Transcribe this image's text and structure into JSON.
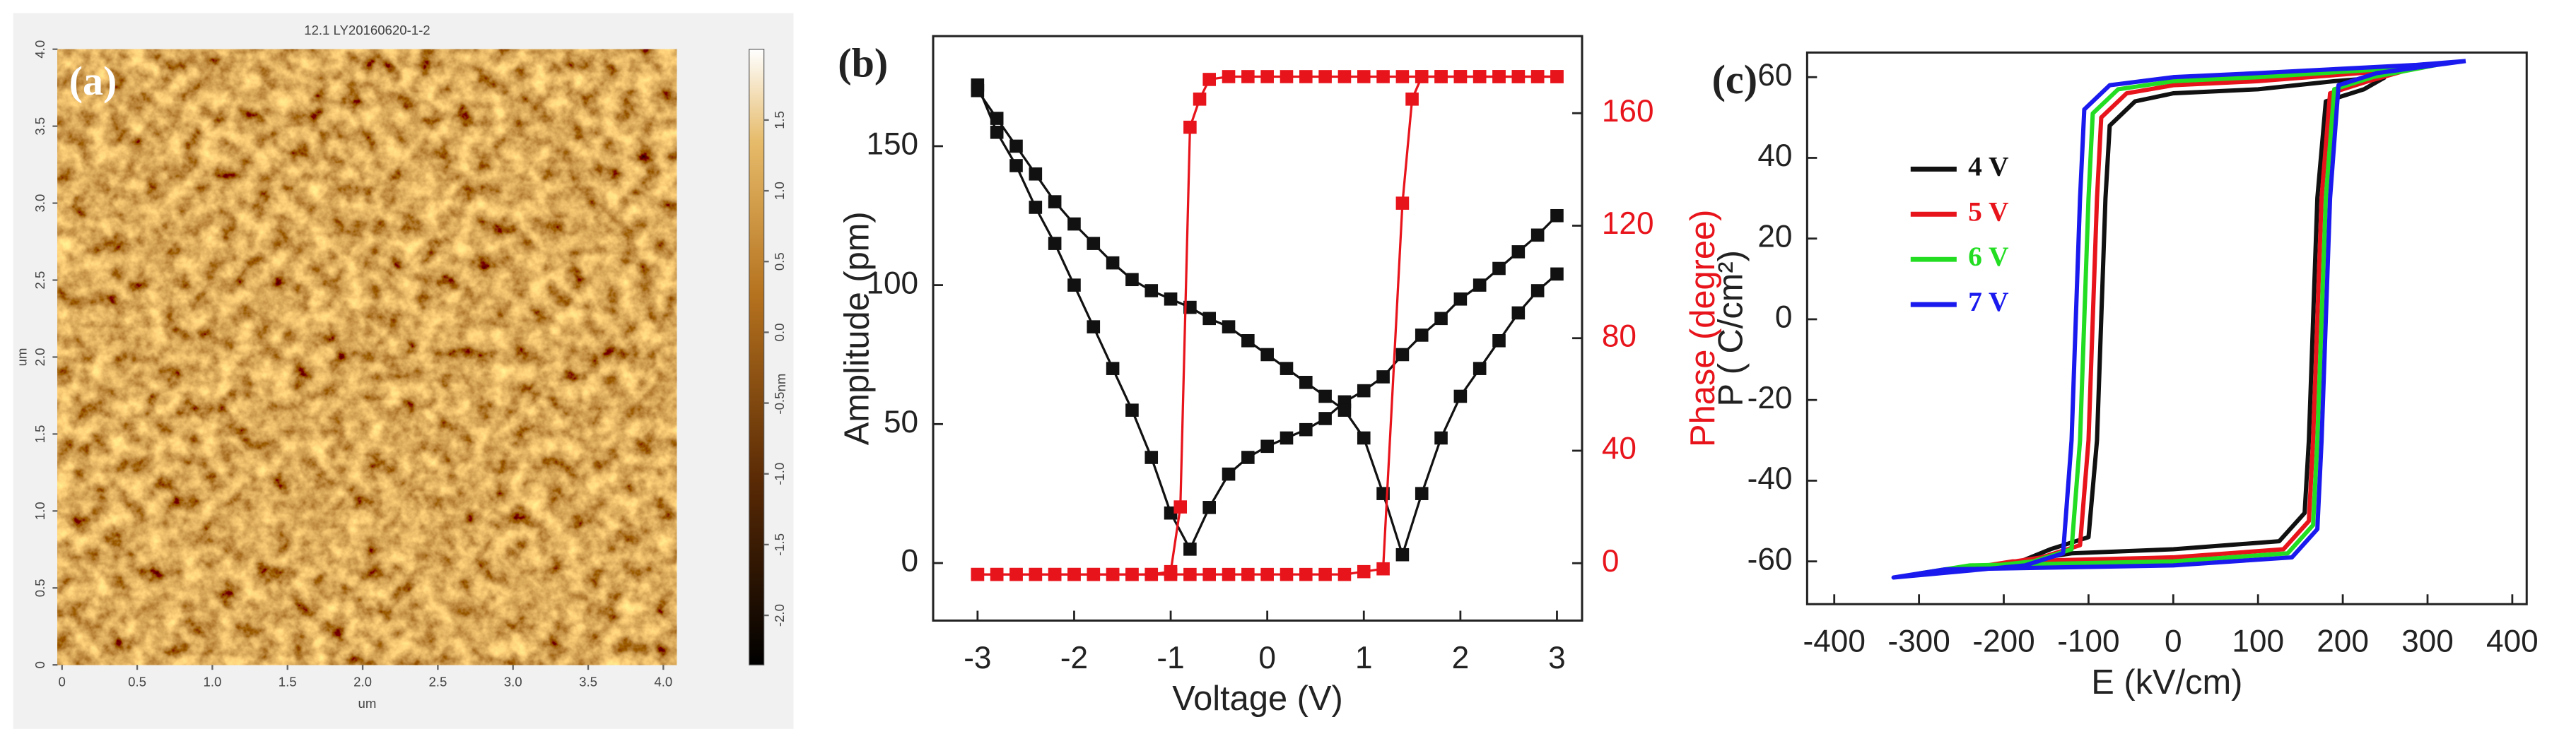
{
  "chart_data": [
    {
      "type": "image",
      "panel_label": "(a)",
      "title": "12.1 LY20160620-1-2",
      "xlabel": "um",
      "ylabel": "um",
      "xlim": [
        -0.03,
        4.09
      ],
      "ylim": [
        0,
        4.0
      ],
      "xticks": [
        0,
        0.5,
        {
          "value": 1,
          "label": "1.0"
        },
        1.5,
        {
          "value": 2,
          "label": "2.0"
        },
        2.5,
        {
          "value": 3,
          "label": "3.0"
        },
        3.5,
        {
          "value": 4,
          "label": "4.0"
        }
      ],
      "yticks": [
        0,
        0.5,
        {
          "value": 1,
          "label": "1.0"
        },
        1.5,
        {
          "value": 2,
          "label": "2.0"
        },
        2.5,
        {
          "value": 3,
          "label": "3.0"
        },
        3.5,
        {
          "value": 4,
          "label": "4.0"
        }
      ],
      "colorbar": {
        "label": "nm",
        "lim": [
          -2.35,
          2.0
        ],
        "ticks": [
          1.5,
          {
            "value": 1,
            "label": "1.0"
          },
          0.5,
          {
            "value": 0,
            "label": "0.0"
          },
          -0.5,
          {
            "value": -1,
            "label": "-1.0"
          },
          -1.5,
          {
            "value": -2,
            "label": "-2.0"
          }
        ]
      }
    },
    {
      "type": "line",
      "panel_label": "(b)",
      "xlabel": "Voltage (V)",
      "ylabel": "Amplitude (pm)",
      "y2label": "Phase (degree)",
      "xlim": [
        -3.46,
        3.26
      ],
      "ylim": [
        -20.7,
        189.6
      ],
      "y2lim": [
        -20.4,
        187.4
      ],
      "xticks": [
        -3,
        -2,
        -1,
        0,
        1,
        2,
        3
      ],
      "yticks": [
        0,
        50,
        100,
        150
      ],
      "y2ticks": [
        0,
        40,
        80,
        120,
        160
      ],
      "series": [
        {
          "color": "#111111",
          "marker": "square",
          "axis": "y",
          "x": [
            -3,
            -2.8,
            -2.6,
            -2.4,
            -2.2,
            -2,
            -1.8,
            -1.6,
            -1.4,
            -1.2,
            -1,
            -0.8,
            -0.6,
            -0.4,
            -0.2,
            0,
            0.2,
            0.4,
            0.6,
            0.8,
            1,
            1.2,
            1.4,
            1.6,
            1.8,
            2,
            2.2,
            2.4,
            2.6,
            2.8,
            3
          ],
          "values": [
            172,
            155,
            143,
            128,
            115,
            100,
            85,
            70,
            55,
            38,
            18,
            5,
            20,
            32,
            38,
            42,
            45,
            48,
            52,
            58,
            62,
            67,
            75,
            82,
            88,
            95,
            100,
            106,
            112,
            118,
            125
          ]
        },
        {
          "color": "#111111",
          "marker": "square",
          "axis": "y",
          "x": [
            3,
            2.8,
            2.6,
            2.4,
            2.2,
            2,
            1.8,
            1.6,
            1.4,
            1.2,
            1,
            0.8,
            0.6,
            0.4,
            0.2,
            0,
            -0.2,
            -0.4,
            -0.6,
            -0.8,
            -1,
            -1.2,
            -1.4,
            -1.6,
            -1.8,
            -2,
            -2.2,
            -2.4,
            -2.6,
            -2.8,
            -3
          ],
          "values": [
            104,
            98,
            90,
            80,
            70,
            60,
            45,
            25,
            3,
            25,
            45,
            55,
            60,
            65,
            70,
            75,
            80,
            85,
            88,
            92,
            95,
            98,
            102,
            108,
            115,
            122,
            130,
            140,
            150,
            160,
            170
          ]
        },
        {
          "color": "#e8141c",
          "marker": "square",
          "axis": "y2",
          "x": [
            -3,
            -2.8,
            -2.6,
            -2.4,
            -2.2,
            -2,
            -1.8,
            -1.6,
            -1.4,
            -1.2,
            -1,
            -0.9,
            -0.8,
            -0.7,
            -0.6,
            -0.4,
            -0.2,
            0,
            0.2,
            0.4,
            0.6,
            0.8,
            1,
            1.2,
            1.4,
            1.6,
            1.8,
            2,
            2.2,
            2.4,
            2.6,
            2.8,
            3
          ],
          "values": [
            -4,
            -4,
            -4,
            -4,
            -4,
            -4,
            -4,
            -4,
            -4,
            -4,
            -3,
            20,
            155,
            165,
            172,
            173,
            173,
            173,
            173,
            173,
            173,
            173,
            173,
            173,
            173,
            173,
            173,
            173,
            173,
            173,
            173,
            173,
            173
          ]
        },
        {
          "color": "#e8141c",
          "marker": "square",
          "axis": "y2",
          "x": [
            3,
            2.8,
            2.6,
            2.4,
            2.2,
            2,
            1.8,
            1.6,
            1.5,
            1.4,
            1.2,
            1,
            0.8,
            0.6,
            0.4,
            0.2,
            0,
            -0.2,
            -0.4,
            -0.6,
            -0.8,
            -1,
            -1.2,
            -1.4,
            -1.6,
            -1.8,
            -2,
            -2.2,
            -2.4,
            -2.6,
            -2.8,
            -3
          ],
          "values": [
            173,
            173,
            173,
            173,
            173,
            173,
            173,
            173,
            165,
            128,
            -2,
            -3,
            -4,
            -4,
            -4,
            -4,
            -4,
            -4,
            -4,
            -4,
            -4,
            -4,
            -4,
            -4,
            -4,
            -4,
            -4,
            -4,
            -4,
            -4,
            -4,
            -4
          ]
        }
      ]
    },
    {
      "type": "line",
      "panel_label": "(c)",
      "xlabel": "E (kV/cm)",
      "ylabel": "P ( C/cm²)",
      "legend": "upper left",
      "xlim": [
        -432,
        417
      ],
      "ylim": [
        -70.6,
        66.1
      ],
      "xticks": [
        -400,
        -300,
        -200,
        -100,
        0,
        100,
        200,
        300,
        400
      ],
      "yticks": [
        -60,
        -40,
        -20,
        0,
        20,
        40,
        60
      ],
      "series": [
        {
          "name": "4 V",
          "color": "#111111",
          "x": [
            250,
            190,
            100,
            0,
            -45,
            -75,
            -80,
            -85,
            -90,
            -100,
            -145,
            -180,
            -120,
            0,
            125,
            155,
            160,
            165,
            170,
            180,
            225,
            250
          ],
          "values": [
            60,
            59,
            57,
            56,
            54,
            48,
            30,
            0,
            -30,
            -54,
            -57,
            -60,
            -58,
            -57,
            -55,
            -48,
            -30,
            0,
            30,
            54,
            57,
            60
          ]
        },
        {
          "name": "5 V",
          "color": "#e8141c",
          "x": [
            280,
            220,
            100,
            0,
            -55,
            -85,
            -90,
            -95,
            -100,
            -110,
            -155,
            -250,
            -190,
            0,
            130,
            160,
            165,
            170,
            175,
            185,
            230,
            280
          ],
          "values": [
            62,
            61,
            59,
            58,
            56,
            50,
            30,
            0,
            -30,
            -56,
            -59,
            -62,
            -60,
            -59,
            -57,
            -50,
            -30,
            0,
            30,
            56,
            59,
            62
          ]
        },
        {
          "name": "6 V",
          "color": "#22dd22",
          "x": [
            310,
            250,
            100,
            0,
            -65,
            -95,
            -100,
            -105,
            -110,
            -120,
            -165,
            -300,
            -240,
            0,
            135,
            165,
            170,
            175,
            180,
            190,
            235,
            310
          ],
          "values": [
            63,
            62,
            60,
            59,
            57,
            51,
            30,
            0,
            -30,
            -57,
            -60,
            -63,
            -61,
            -60,
            -58,
            -51,
            -30,
            0,
            30,
            57,
            60,
            63
          ]
        },
        {
          "name": "7 V",
          "color": "#1a1aee",
          "x": [
            345,
            285,
            100,
            0,
            -75,
            -105,
            -110,
            -115,
            -120,
            -130,
            -175,
            -330,
            -270,
            0,
            140,
            170,
            175,
            180,
            185,
            195,
            240,
            345
          ],
          "values": [
            64,
            63,
            61,
            60,
            58,
            52,
            30,
            0,
            -30,
            -58,
            -61,
            -64,
            -62,
            -61,
            -59,
            -52,
            -30,
            0,
            30,
            58,
            61,
            64
          ]
        }
      ]
    }
  ]
}
